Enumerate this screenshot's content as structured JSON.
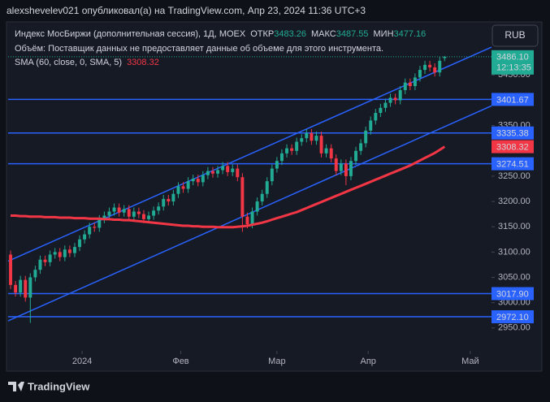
{
  "top_bar": "alexshevelev021 опубликовал(а) на TradingView.com, Апр 23, 2024 11:36 UTC+3",
  "legend": {
    "symbol": "Индекс МосБиржи (дополнительная сессия), 1Д, MOEX",
    "open_label": "ОТКР",
    "high_label": "МАКС",
    "low_label": "МИН",
    "volume": "Объём: Поставщик данных не предоставляет данные об объеме для этого инструмента.",
    "sma_name": "SMA (60, close, 0, SMA, 5)"
  },
  "currency": "RUB",
  "logo": "TradingView",
  "chart_data": {
    "type": "candlestick",
    "up_color": "#22ab94",
    "down_color": "#f23645",
    "open": [
      3095,
      3035,
      3020,
      3045,
      3010,
      3050,
      3065,
      3085,
      3080,
      3095,
      3100,
      3090,
      3105,
      3098,
      3110,
      3125,
      3135,
      3150,
      3148,
      3165,
      3172,
      3180,
      3188,
      3178,
      3185,
      3170,
      3180,
      3175,
      3165,
      3172,
      3182,
      3190,
      3205,
      3200,
      3215,
      3230,
      3225,
      3240,
      3245,
      3238,
      3252,
      3260,
      3255,
      3262,
      3270,
      3258,
      3265,
      3248,
      3170,
      3155,
      3180,
      3200,
      3215,
      3240,
      3265,
      3280,
      3295,
      3305,
      3300,
      3318,
      3325,
      3335,
      3320,
      3330,
      3295,
      3305,
      3285,
      3260,
      3275,
      3250,
      3280,
      3300,
      3315,
      3340,
      3360,
      3375,
      3385,
      3395,
      3405,
      3400,
      3420,
      3435,
      3428,
      3445,
      3460,
      3470,
      3465,
      3455,
      3483.26
    ],
    "high": [
      3103,
      3043,
      3053,
      3053,
      3058,
      3073,
      3093,
      3093,
      3103,
      3108,
      3108,
      3113,
      3113,
      3118,
      3133,
      3143,
      3158,
      3158,
      3173,
      3180,
      3188,
      3196,
      3196,
      3193,
      3193,
      3188,
      3188,
      3183,
      3180,
      3190,
      3198,
      3213,
      3213,
      3223,
      3238,
      3238,
      3248,
      3253,
      3253,
      3260,
      3268,
      3268,
      3270,
      3278,
      3278,
      3273,
      3273,
      3256,
      3178,
      3188,
      3208,
      3223,
      3248,
      3273,
      3288,
      3303,
      3313,
      3313,
      3326,
      3333,
      3343,
      3343,
      3338,
      3338,
      3313,
      3313,
      3293,
      3283,
      3283,
      3288,
      3308,
      3323,
      3348,
      3368,
      3383,
      3393,
      3403,
      3413,
      3413,
      3428,
      3443,
      3443,
      3453,
      3468,
      3478,
      3478,
      3473,
      3486,
      3487.55
    ],
    "low": [
      3027,
      3012,
      3012,
      3002,
      2960,
      3042,
      3057,
      3072,
      3072,
      3087,
      3082,
      3082,
      3090,
      3090,
      3102,
      3117,
      3127,
      3140,
      3140,
      3157,
      3164,
      3172,
      3170,
      3170,
      3162,
      3162,
      3167,
      3157,
      3157,
      3164,
      3174,
      3182,
      3192,
      3192,
      3207,
      3217,
      3217,
      3232,
      3230,
      3230,
      3244,
      3247,
      3247,
      3254,
      3250,
      3250,
      3240,
      3140,
      3147,
      3147,
      3172,
      3192,
      3207,
      3232,
      3257,
      3272,
      3287,
      3292,
      3292,
      3310,
      3317,
      3312,
      3312,
      3287,
      3287,
      3277,
      3252,
      3252,
      3232,
      3242,
      3272,
      3292,
      3307,
      3332,
      3352,
      3367,
      3377,
      3387,
      3392,
      3392,
      3412,
      3420,
      3420,
      3437,
      3452,
      3457,
      3447,
      3447,
      3477.16
    ],
    "close": [
      3035,
      3020,
      3045,
      3010,
      3050,
      3065,
      3085,
      3080,
      3095,
      3100,
      3090,
      3105,
      3098,
      3110,
      3125,
      3135,
      3150,
      3148,
      3165,
      3172,
      3180,
      3188,
      3178,
      3185,
      3170,
      3180,
      3175,
      3165,
      3172,
      3182,
      3190,
      3205,
      3200,
      3215,
      3230,
      3225,
      3240,
      3245,
      3238,
      3252,
      3260,
      3255,
      3262,
      3270,
      3258,
      3265,
      3248,
      3170,
      3155,
      3180,
      3200,
      3215,
      3240,
      3265,
      3280,
      3295,
      3305,
      3300,
      3318,
      3325,
      3335,
      3320,
      3330,
      3295,
      3305,
      3285,
      3260,
      3275,
      3250,
      3280,
      3300,
      3315,
      3340,
      3360,
      3375,
      3385,
      3395,
      3405,
      3400,
      3420,
      3435,
      3428,
      3445,
      3460,
      3470,
      3465,
      3455,
      3478,
      3486.1
    ],
    "sma": {
      "color": "#f23645",
      "values": [
        3172,
        3172,
        3171,
        3171,
        3170,
        3170,
        3170,
        3169,
        3169,
        3169,
        3168,
        3168,
        3168,
        3167,
        3167,
        3167,
        3166,
        3166,
        3166,
        3165,
        3165,
        3164,
        3164,
        3163,
        3163,
        3162,
        3161,
        3160,
        3159,
        3158,
        3157,
        3156,
        3155,
        3154,
        3153,
        3152,
        3152,
        3151,
        3151,
        3150,
        3150,
        3150,
        3149,
        3149,
        3149,
        3149,
        3150,
        3151,
        3152,
        3154,
        3156,
        3158,
        3161,
        3164,
        3167,
        3170,
        3173,
        3176,
        3179,
        3183,
        3187,
        3191,
        3195,
        3199,
        3203,
        3207,
        3211,
        3215,
        3219,
        3223,
        3227,
        3231,
        3235,
        3239,
        3243,
        3247,
        3251,
        3255,
        3259,
        3263,
        3267,
        3271,
        3276,
        3281,
        3286,
        3291,
        3296,
        3302,
        3308.32
      ]
    },
    "xlim": [
      -0.5,
      97.5
    ],
    "xticks": [
      {
        "value": 14.5,
        "label": "2024"
      },
      {
        "value": 34.5,
        "label": "Фев"
      },
      {
        "value": 54,
        "label": "Мар"
      },
      {
        "value": 72.5,
        "label": "Апр"
      },
      {
        "value": 93.2,
        "label": "Май"
      }
    ],
    "ylim": [
      2908,
      3550
    ],
    "yticks": [
      {
        "value": 2950,
        "label": "2950.00"
      },
      {
        "value": 3000,
        "label": "3000.00"
      },
      {
        "value": 3050,
        "label": "3050.00"
      },
      {
        "value": 3100,
        "label": "3100.00"
      },
      {
        "value": 3150,
        "label": "3150.00"
      },
      {
        "value": 3200,
        "label": "3200.00"
      },
      {
        "value": 3250,
        "label": "3250.00"
      },
      {
        "value": 3300,
        "label": "3300.00"
      },
      {
        "value": 3350,
        "label": "3350.00"
      },
      {
        "value": 3400,
        "label": "3400.00"
      },
      {
        "value": 3450,
        "label": "3450.00"
      }
    ],
    "level_color": "#2962ff",
    "levels": [
      3401.67,
      3335.38,
      3274.51,
      {
        "value": 3017.9,
        "label": "3017.90"
      },
      {
        "value": 2972.1,
        "label": "2972.10"
      }
    ],
    "channels": [
      {
        "x": [
          -0.5,
          97.5
        ],
        "y": [
          3082,
          3505
        ]
      },
      {
        "x": [
          -0.5,
          97.5
        ],
        "y": [
          2964,
          3389
        ]
      }
    ],
    "last_price": {
      "value": 3486.1,
      "label": "3486.10"
    },
    "countdown": "12:13:35"
  }
}
